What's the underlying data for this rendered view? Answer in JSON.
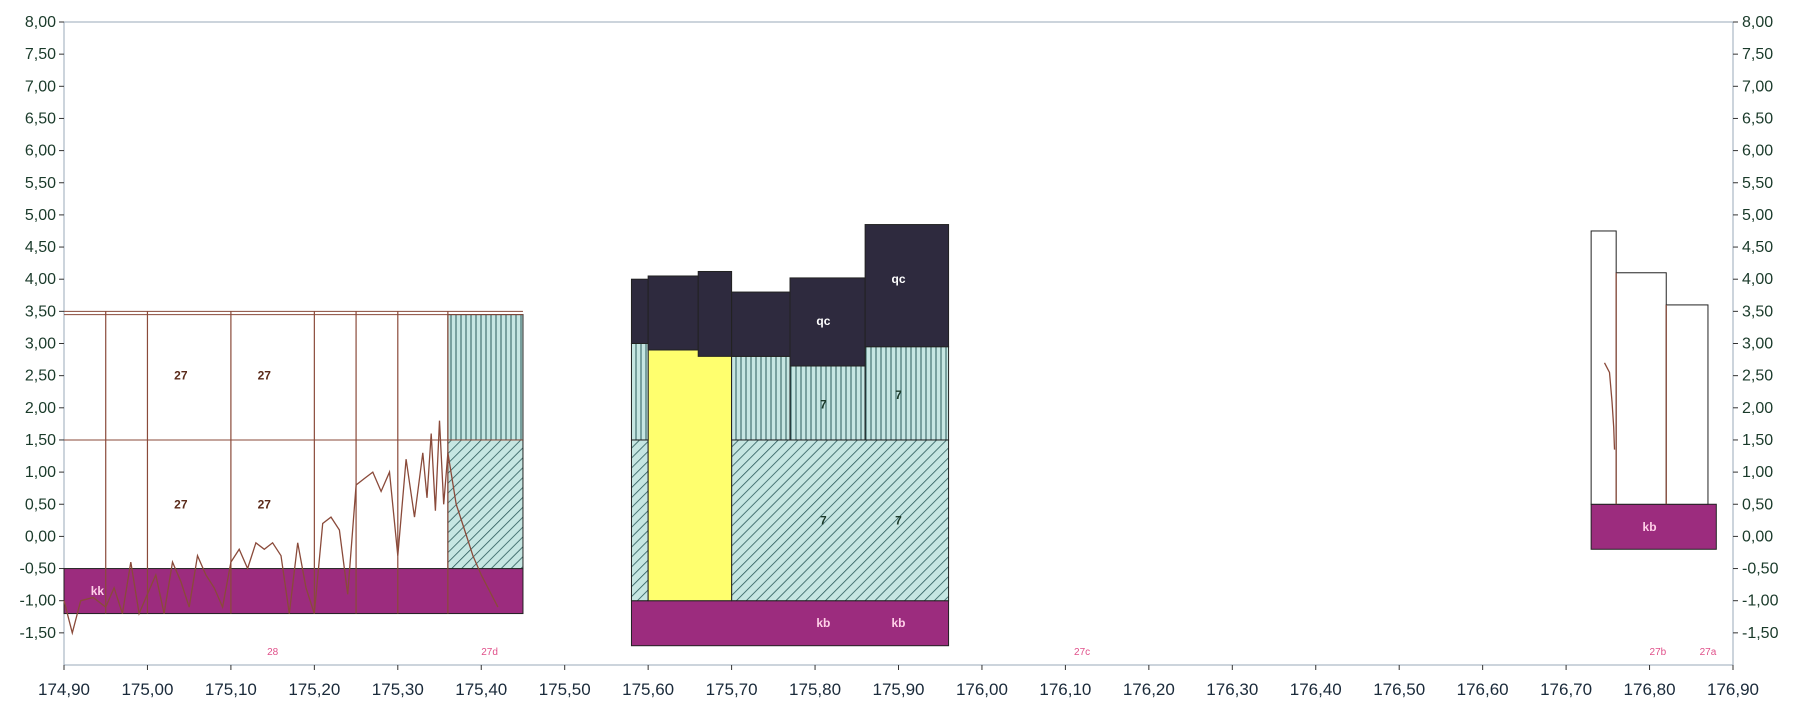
{
  "chart_data": {
    "type": "borehole-profile",
    "xlim": [
      174.9,
      176.9
    ],
    "ylim": [
      -2.0,
      8.0
    ],
    "x_ticks": [
      "174,90",
      "175,00",
      "175,10",
      "175,20",
      "175,30",
      "175,40",
      "175,50",
      "175,60",
      "175,70",
      "175,80",
      "175,90",
      "176,00",
      "176,10",
      "176,20",
      "176,30",
      "176,40",
      "176,50",
      "176,60",
      "176,70",
      "176,80",
      "176,90"
    ],
    "y_ticks": [
      "8,00",
      "7,50",
      "7,00",
      "6,50",
      "6,00",
      "5,50",
      "5,00",
      "4,50",
      "4,00",
      "3,50",
      "3,00",
      "2,50",
      "2,00",
      "1,50",
      "1,00",
      "0,50",
      "0,00",
      "-0,50",
      "-1,00",
      "-1,50"
    ],
    "colors": {
      "kb": "#9c2c7e",
      "qc": "#2e2a3e",
      "layer7": "#c6e6e2",
      "yellow": "#ffff6e",
      "hatch": "#2a5a5a",
      "line": "#8a4a3a",
      "grid": "#9aa8b8",
      "section_label": "#e0508a"
    },
    "blocks": [
      {
        "x0": 174.9,
        "x1": 175.45,
        "y0": -1.2,
        "y1": -0.5,
        "layer": "kb"
      },
      {
        "x0": 175.36,
        "x1": 175.45,
        "y0": -0.5,
        "y1": 1.5,
        "layer": "diag"
      },
      {
        "x0": 175.36,
        "x1": 175.45,
        "y0": 1.5,
        "y1": 3.45,
        "layer": "vert"
      },
      {
        "x0": 175.58,
        "x1": 175.96,
        "y0": -1.7,
        "y1": -1.0,
        "layer": "kb"
      },
      {
        "x0": 175.58,
        "x1": 175.6,
        "y0": -1.0,
        "y1": 1.5,
        "layer": "diag"
      },
      {
        "x0": 175.7,
        "x1": 175.96,
        "y0": -1.0,
        "y1": 1.5,
        "layer": "diag"
      },
      {
        "x0": 175.6,
        "x1": 175.7,
        "y0": -1.0,
        "y1": 2.9,
        "layer": "yellow"
      },
      {
        "x0": 175.58,
        "x1": 175.6,
        "y0": 1.5,
        "y1": 3.0,
        "layer": "vert"
      },
      {
        "x0": 175.7,
        "x1": 175.77,
        "y0": 1.5,
        "y1": 2.8,
        "layer": "vert"
      },
      {
        "x0": 175.77,
        "x1": 175.86,
        "y0": 1.5,
        "y1": 2.65,
        "layer": "vert"
      },
      {
        "x0": 175.86,
        "x1": 175.96,
        "y0": 1.5,
        "y1": 2.95,
        "layer": "vert"
      },
      {
        "x0": 175.58,
        "x1": 175.6,
        "y0": 3.0,
        "y1": 4.0,
        "layer": "qc"
      },
      {
        "x0": 175.6,
        "x1": 175.66,
        "y0": 2.9,
        "y1": 4.05,
        "layer": "qc"
      },
      {
        "x0": 175.66,
        "x1": 175.7,
        "y0": 2.8,
        "y1": 4.12,
        "layer": "qc"
      },
      {
        "x0": 175.7,
        "x1": 175.77,
        "y0": 2.8,
        "y1": 3.8,
        "layer": "qc"
      },
      {
        "x0": 175.77,
        "x1": 175.86,
        "y0": 2.65,
        "y1": 4.02,
        "layer": "qc"
      },
      {
        "x0": 175.86,
        "x1": 175.96,
        "y0": 2.95,
        "y1": 4.85,
        "layer": "qc"
      },
      {
        "x0": 176.73,
        "x1": 176.88,
        "y0": -0.2,
        "y1": 0.5,
        "layer": "kb"
      },
      {
        "x0": 176.73,
        "x1": 176.76,
        "y0": 0.5,
        "y1": 4.75,
        "layer": "empty"
      },
      {
        "x0": 176.76,
        "x1": 176.82,
        "y0": 0.5,
        "y1": 4.1,
        "layer": "empty"
      },
      {
        "x0": 176.82,
        "x1": 176.87,
        "y0": 0.5,
        "y1": 3.6,
        "layer": "empty"
      }
    ],
    "segment_labels": [
      {
        "text": "kk",
        "x": 174.94,
        "y": -0.85,
        "color": "#ffd0e8"
      },
      {
        "text": "27",
        "x": 175.04,
        "y": 2.5,
        "color": "#5a2a1a"
      },
      {
        "text": "27",
        "x": 175.14,
        "y": 2.5,
        "color": "#5a2a1a"
      },
      {
        "text": "27",
        "x": 175.04,
        "y": 0.5,
        "color": "#5a2a1a"
      },
      {
        "text": "27",
        "x": 175.14,
        "y": 0.5,
        "color": "#5a2a1a"
      },
      {
        "text": "qc",
        "x": 175.81,
        "y": 3.35,
        "color": "#ffffff"
      },
      {
        "text": "qc",
        "x": 175.9,
        "y": 4.0,
        "color": "#ffffff"
      },
      {
        "text": "7",
        "x": 175.81,
        "y": 2.05,
        "color": "#1a3a2a"
      },
      {
        "text": "7",
        "x": 175.9,
        "y": 2.2,
        "color": "#1a3a2a"
      },
      {
        "text": "7",
        "x": 175.81,
        "y": 0.25,
        "color": "#1a3a2a"
      },
      {
        "text": "7",
        "x": 175.9,
        "y": 0.25,
        "color": "#1a3a2a"
      },
      {
        "text": "kb",
        "x": 175.81,
        "y": -1.35,
        "color": "#ffd0e8"
      },
      {
        "text": "kb",
        "x": 175.9,
        "y": -1.35,
        "color": "#ffd0e8"
      },
      {
        "text": "kb",
        "x": 176.8,
        "y": 0.15,
        "color": "#ffd0e8"
      }
    ],
    "section_labels": [
      {
        "text": "28",
        "x": 175.15
      },
      {
        "text": "27d",
        "x": 175.41
      },
      {
        "text": "27c",
        "x": 176.12
      },
      {
        "text": "27b",
        "x": 176.81
      },
      {
        "text": "27a",
        "x": 176.87
      }
    ],
    "curve": {
      "x": [
        174.9,
        174.91,
        174.92,
        174.935,
        174.95,
        174.96,
        174.97,
        174.98,
        174.99,
        175.0,
        175.01,
        175.02,
        175.03,
        175.04,
        175.05,
        175.06,
        175.07,
        175.08,
        175.09,
        175.1,
        175.11,
        175.12,
        175.13,
        175.14,
        175.15,
        175.16,
        175.17,
        175.18,
        175.19,
        175.2,
        175.21,
        175.22,
        175.23,
        175.24,
        175.25,
        175.26,
        175.27,
        175.28,
        175.29,
        175.3,
        175.31,
        175.32,
        175.33,
        175.335,
        175.34,
        175.345,
        175.35,
        175.355,
        175.36,
        175.37,
        175.38,
        175.39,
        175.4,
        175.42
      ],
      "y": [
        -1.0,
        -1.5,
        -1.0,
        -0.95,
        -1.1,
        -0.8,
        -1.2,
        -0.4,
        -1.2,
        -0.9,
        -0.6,
        -1.2,
        -0.4,
        -0.7,
        -1.1,
        -0.3,
        -0.6,
        -0.8,
        -1.1,
        -0.4,
        -0.2,
        -0.5,
        -0.1,
        -0.2,
        -0.1,
        -0.3,
        -1.2,
        -0.1,
        -0.8,
        -1.2,
        0.2,
        0.3,
        0.1,
        -0.9,
        0.8,
        0.9,
        1.0,
        0.7,
        1.0,
        -0.3,
        1.2,
        0.3,
        1.3,
        0.6,
        1.6,
        0.4,
        1.8,
        0.5,
        1.3,
        0.5,
        0.1,
        -0.3,
        -0.6,
        -1.1
      ]
    },
    "curve2": {
      "x": [
        176.746,
        176.752,
        176.755,
        176.757,
        176.758
      ],
      "y": [
        2.7,
        2.55,
        2.1,
        1.7,
        1.35
      ]
    },
    "vlines": [
      {
        "x": 174.95,
        "y0": -1.2,
        "y1": 3.5
      },
      {
        "x": 175.0,
        "y0": -1.2,
        "y1": 3.5
      },
      {
        "x": 175.1,
        "y0": -1.2,
        "y1": 3.5
      },
      {
        "x": 175.2,
        "y0": -1.2,
        "y1": 3.5
      },
      {
        "x": 175.25,
        "y0": -1.2,
        "y1": 3.5
      },
      {
        "x": 175.3,
        "y0": -1.2,
        "y1": 3.5
      },
      {
        "x": 175.36,
        "y0": -1.2,
        "y1": 3.5
      },
      {
        "x": 176.76,
        "y0": 0.5,
        "y1": 4.1
      },
      {
        "x": 176.82,
        "y0": 0.5,
        "y1": 3.6
      }
    ],
    "hlines": [
      {
        "x0": 174.9,
        "x1": 175.45,
        "y": 3.5
      },
      {
        "x0": 174.9,
        "x1": 175.45,
        "y": 3.45
      },
      {
        "x0": 174.9,
        "x1": 175.45,
        "y": 1.5
      }
    ]
  }
}
